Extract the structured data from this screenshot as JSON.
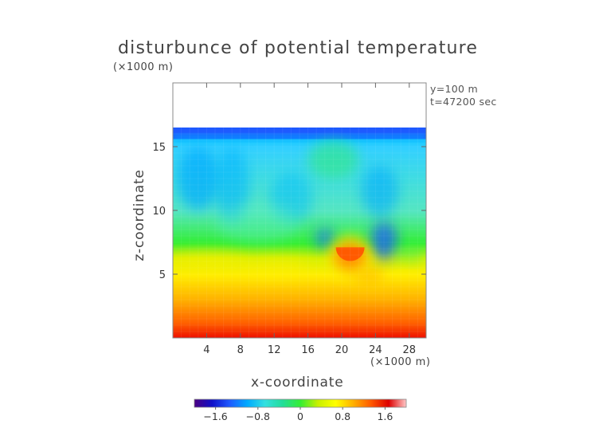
{
  "title": "disturbunce of potential temperature",
  "z_unit": "(×1000 m)",
  "x_unit": "(×1000 m)",
  "info": {
    "y_level": "y=100 m",
    "time": "t=47200 sec"
  },
  "colors": {
    "colormap": [
      "#4b0082",
      "#1010c8",
      "#1e5aff",
      "#00aaff",
      "#33e0e0",
      "#22dd99",
      "#33ee33",
      "#c8f000",
      "#ffff00",
      "#ffb000",
      "#ff5a00",
      "#dd0000",
      "#ffc8c8"
    ]
  },
  "chart_data": {
    "type": "heatmap",
    "title": "disturbunce of potential temperature",
    "xlabel": "x-coordinate",
    "ylabel": "z-coordinate",
    "xlim": [
      0,
      30
    ],
    "ylim": [
      0,
      20
    ],
    "x_ticks": [
      "4",
      "8",
      "12",
      "16",
      "20",
      "24",
      "28"
    ],
    "x_tick_values": [
      4,
      8,
      12,
      16,
      20,
      24,
      28
    ],
    "y_ticks": [
      "5",
      "10",
      "15"
    ],
    "y_tick_values": [
      5,
      10,
      15
    ],
    "data_top_z": 16.5,
    "colorbar": {
      "range": [
        -2.0,
        2.0
      ],
      "tick_labels": [
        "−1.6",
        "−0.8",
        "0",
        "0.8",
        "1.6"
      ],
      "tick_values": [
        -1.6,
        -0.8,
        0,
        0.8,
        1.6
      ]
    },
    "features": [
      {
        "name": "warm bubble",
        "x": 21,
        "z": 6.4,
        "value": 1.7
      },
      {
        "name": "cold anomaly",
        "x": 25,
        "z": 7.5,
        "value": -1.0
      }
    ]
  }
}
